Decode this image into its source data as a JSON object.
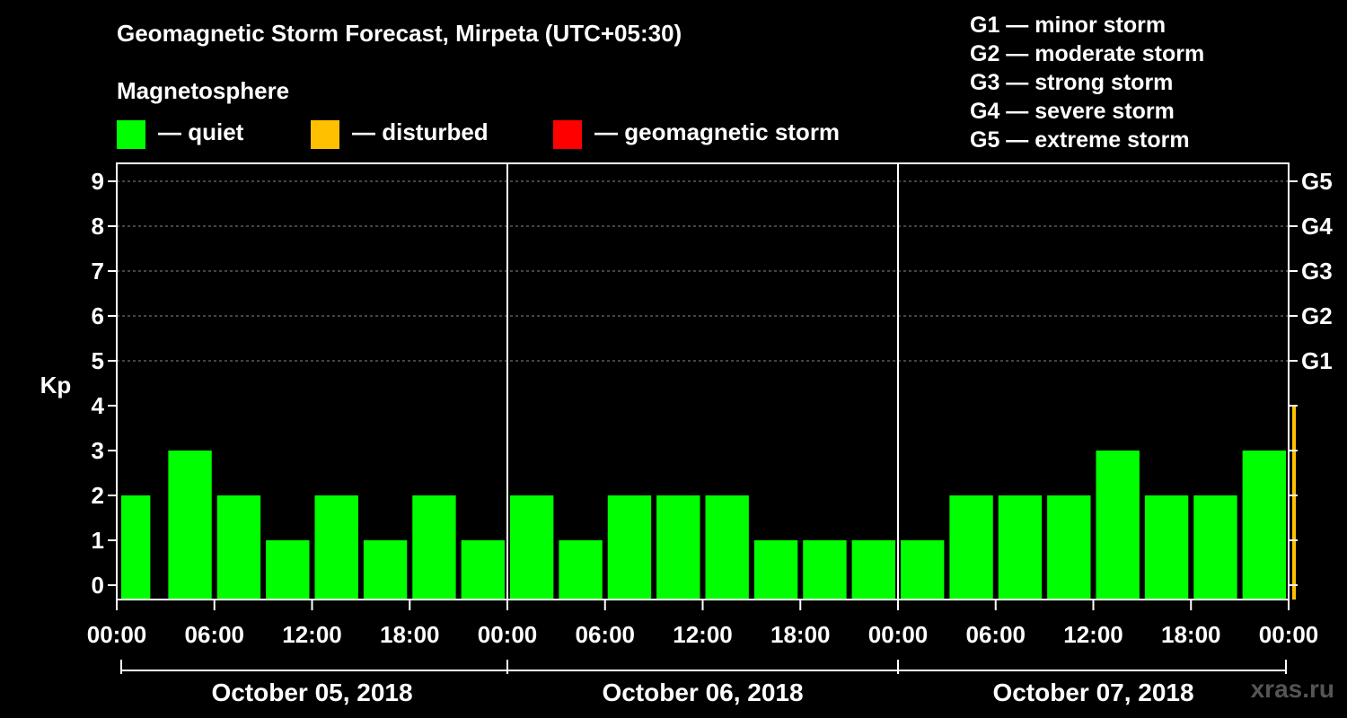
{
  "title": "Geomagnetic Storm Forecast, Mirpeta (UTC+05:30)",
  "legend": {
    "title": "Magnetosphere",
    "items": [
      {
        "label": "— quiet",
        "color": "#00ff00"
      },
      {
        "label": "— disturbed",
        "color": "#ffc000"
      },
      {
        "label": "— geomagnetic storm",
        "color": "#ff0000"
      }
    ]
  },
  "storm_scale": [
    "G1 — minor storm",
    "G2 — moderate storm",
    "G3 — strong storm",
    "G4 — severe storm",
    "G5 — extreme storm"
  ],
  "watermark": "xras.ru",
  "chart_data": {
    "type": "bar",
    "ylabel": "Kp",
    "ylim": [
      0,
      9
    ],
    "yticks": [
      "0",
      "1",
      "2",
      "3",
      "4",
      "5",
      "6",
      "7",
      "8",
      "9"
    ],
    "right_ticks": [
      {
        "kp": 5,
        "label": "G1"
      },
      {
        "kp": 6,
        "label": "G2"
      },
      {
        "kp": 7,
        "label": "G3"
      },
      {
        "kp": 8,
        "label": "G4"
      },
      {
        "kp": 9,
        "label": "G5"
      }
    ],
    "grid": true,
    "xtick_labels": [
      "00:00",
      "06:00",
      "12:00",
      "18:00",
      "00:00",
      "06:00",
      "12:00",
      "18:00",
      "00:00",
      "06:00",
      "12:00",
      "18:00",
      "00:00"
    ],
    "days": [
      "October 05, 2018",
      "October 06, 2018",
      "October 07, 2018"
    ],
    "interval_hours": 3,
    "values": [
      2,
      3,
      2,
      1,
      2,
      1,
      2,
      1,
      2,
      1,
      2,
      2,
      2,
      1,
      1,
      1,
      1,
      2,
      2,
      2,
      3,
      2,
      2,
      3,
      4
    ],
    "status": [
      "quiet",
      "quiet",
      "quiet",
      "quiet",
      "quiet",
      "quiet",
      "quiet",
      "quiet",
      "quiet",
      "quiet",
      "quiet",
      "quiet",
      "quiet",
      "quiet",
      "quiet",
      "quiet",
      "quiet",
      "quiet",
      "quiet",
      "quiet",
      "quiet",
      "quiet",
      "quiet",
      "quiet",
      "disturbed"
    ],
    "colors": {
      "quiet": "#00ff00",
      "disturbed": "#ffc000",
      "storm": "#ff0000"
    }
  }
}
